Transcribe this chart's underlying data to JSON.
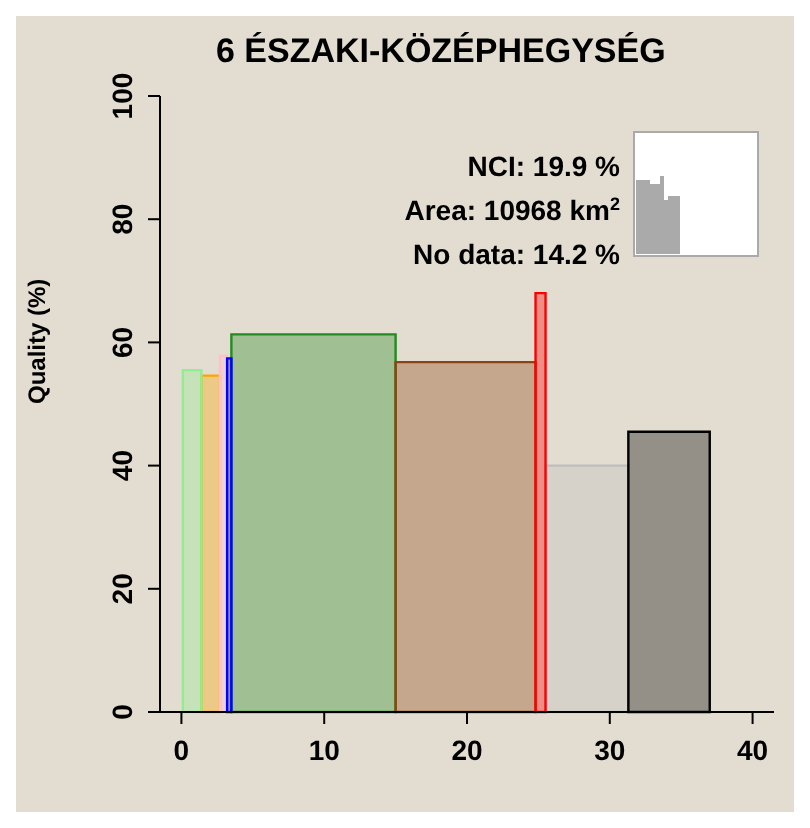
{
  "chart_data": {
    "type": "histogram",
    "title": "6 ÉSZAKI-KÖZÉPHEGYSÉG",
    "ylabel": "Quality (%)",
    "bins": [
      0.1,
      1.4,
      2.7,
      3.2,
      3.5,
      15,
      24.8,
      25.5,
      31.3,
      37
    ],
    "values": [
      55.5,
      54.6,
      57.8,
      57.4,
      61.3,
      56.8,
      68,
      40,
      45.5
    ],
    "colors": [
      "#90ee90",
      "#ffa500",
      "#ffc0cb",
      "#0000ff",
      "#228b22",
      "#8b4513",
      "#ff0000",
      "#bebebe",
      "#000000"
    ],
    "xlim": [
      -1.5,
      41.5
    ],
    "xticks": [
      0,
      10,
      20,
      30,
      40
    ],
    "ylim": [
      0,
      100
    ],
    "yticks": [
      0,
      20,
      40,
      60,
      80,
      100
    ],
    "grid": false,
    "annotations": [
      "NCI: 19.9 %",
      "Area: 10968 km$^{2}$",
      "No data: 14.2 %"
    ]
  }
}
